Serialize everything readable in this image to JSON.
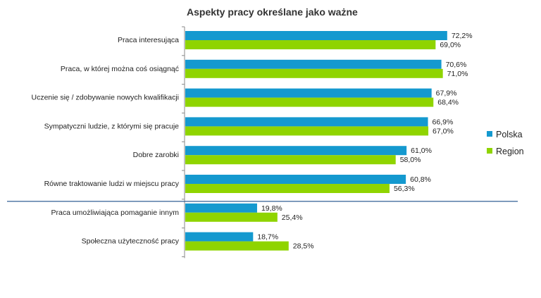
{
  "chart_data": {
    "type": "bar",
    "orientation": "horizontal",
    "title": "Aspekty pracy określane jako ważne",
    "categories": [
      "Praca interesująca",
      "Praca, w której można coś osiągnąć",
      "Uczenie się / zdobywanie nowych kwalifikacji",
      "Sympatyczni ludzie, z którymi się pracuje",
      "Dobre zarobki",
      "Równe traktowanie ludzi w miejscu pracy",
      "Praca umożliwiająca pomaganie innym",
      "Społeczna użyteczność pracy"
    ],
    "series": [
      {
        "name": "Polska",
        "color": "#1499cf",
        "values": [
          72.2,
          70.6,
          67.9,
          66.9,
          61.0,
          60.8,
          19.8,
          18.7
        ],
        "labels": [
          "72,2%",
          "70,6%",
          "67,9%",
          "66,9%",
          "61,0%",
          "60,8%",
          "19,8%",
          "18,7%"
        ]
      },
      {
        "name": "Region",
        "color": "#8fd400",
        "values": [
          69.0,
          71.0,
          68.4,
          67.0,
          58.0,
          56.3,
          25.4,
          28.5
        ],
        "labels": [
          "69,0%",
          "71,0%",
          "68,4%",
          "67,0%",
          "58,0%",
          "56,3%",
          "25,4%",
          "28,5%"
        ]
      }
    ],
    "xlim": [
      0,
      100
    ],
    "legend": "right",
    "separator_after_category": 5
  }
}
